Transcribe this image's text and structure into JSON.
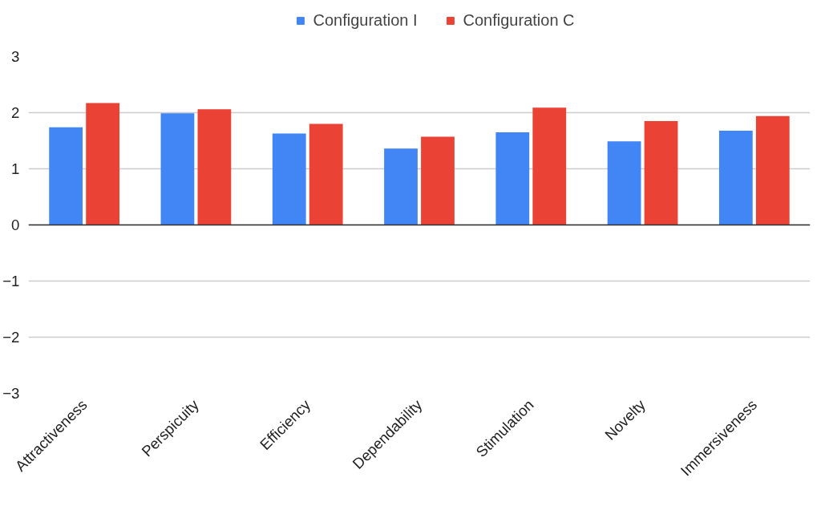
{
  "chart_data": {
    "type": "bar",
    "categories": [
      "Attractiveness",
      "Perspicuity",
      "Efficiency",
      "Dependability",
      "Stimulation",
      "Novelty",
      "Immersiveness"
    ],
    "series": [
      {
        "name": "Configuration I",
        "color": "#4285f4",
        "values": [
          1.74,
          1.99,
          1.63,
          1.36,
          1.65,
          1.49,
          1.68
        ]
      },
      {
        "name": "Configuration C",
        "color": "#ea4335",
        "values": [
          2.17,
          2.06,
          1.8,
          1.57,
          2.09,
          1.85,
          1.94
        ]
      }
    ],
    "ylim": [
      -3,
      3
    ],
    "yticks": [
      -3,
      -2,
      -1,
      0,
      1,
      2,
      3
    ],
    "grid": "y",
    "legend": "top"
  }
}
